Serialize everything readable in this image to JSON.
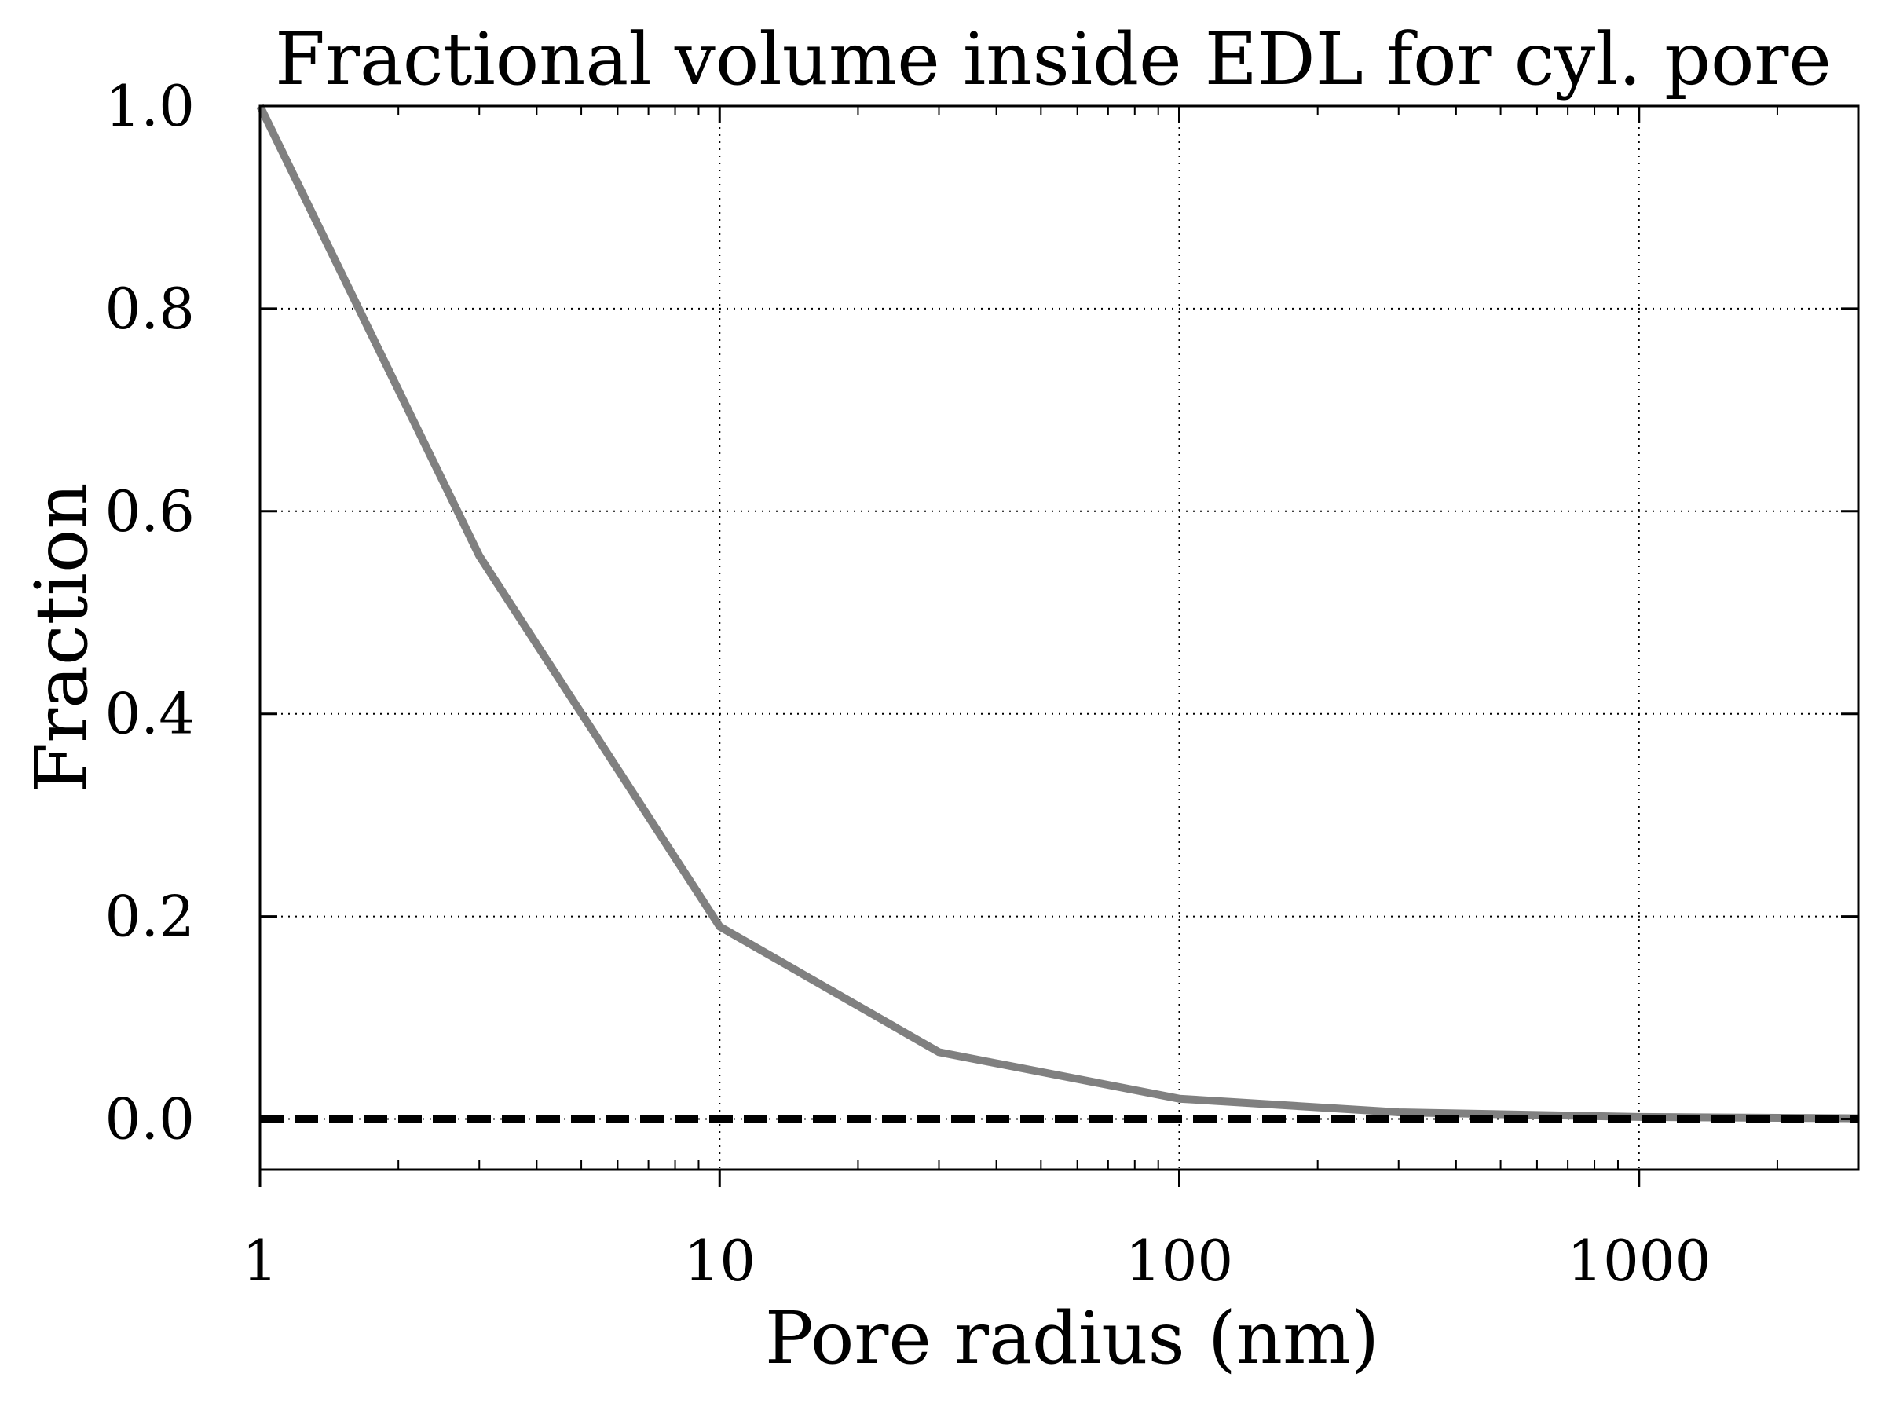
{
  "chart_data": {
    "type": "line",
    "title": "Fractional volume inside EDL for cyl. pore",
    "xlabel": "Pore radius (nm)",
    "ylabel": "Fraction",
    "xscale": "log",
    "xlim": [
      1,
      3000
    ],
    "ylim": [
      -0.05,
      1.0
    ],
    "xticks": [
      1,
      10,
      100,
      1000
    ],
    "xtick_labels": [
      "1",
      "10",
      "100",
      "1000"
    ],
    "yticks": [
      0.0,
      0.2,
      0.4,
      0.6,
      0.8,
      1.0
    ],
    "ytick_labels": [
      "0.0",
      "0.2",
      "0.4",
      "0.6",
      "0.8",
      "1.0"
    ],
    "grid": true,
    "series": [
      {
        "color": "#808080",
        "style": "solid",
        "x": [
          1,
          3,
          10,
          30,
          100,
          300,
          1000,
          3000
        ],
        "y": [
          1.0,
          0.556,
          0.19,
          0.066,
          0.02,
          0.0066,
          0.002,
          0.0007
        ]
      },
      {
        "color": "#000000",
        "style": "dashed",
        "x": [
          1,
          3,
          10,
          30,
          100,
          300,
          1000,
          3000
        ],
        "y": [
          0.0,
          0.0,
          0.0,
          0.0,
          0.0,
          0.0,
          0.0,
          0.0
        ]
      }
    ]
  }
}
